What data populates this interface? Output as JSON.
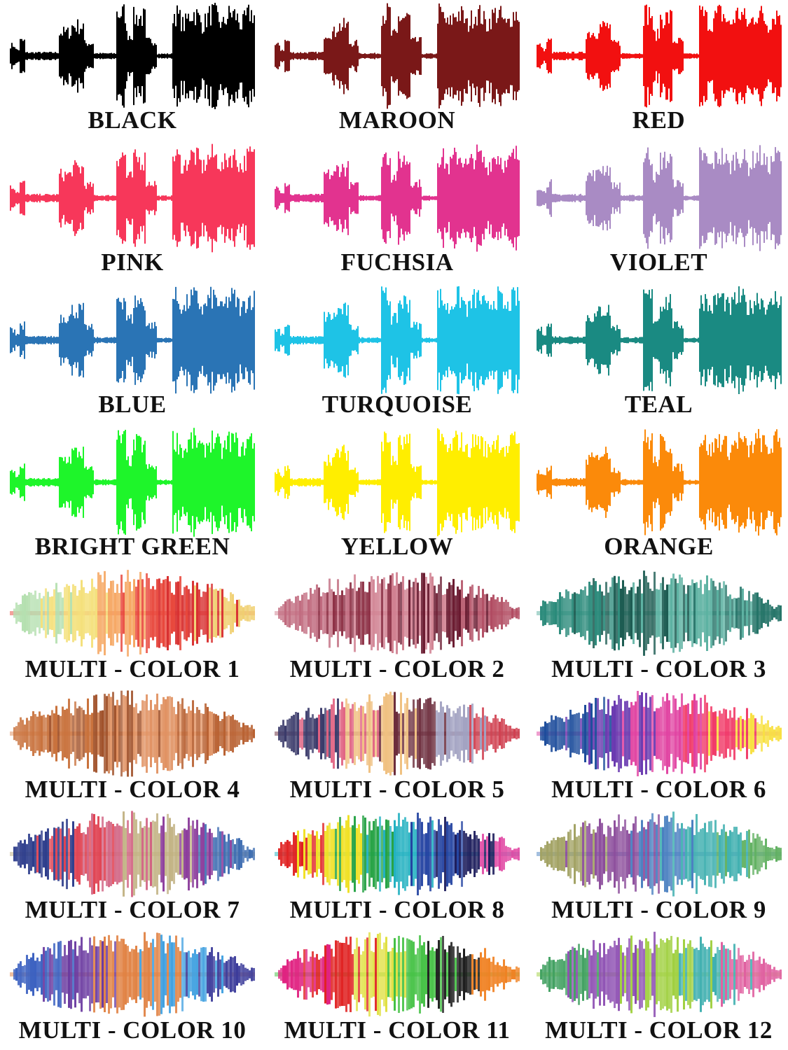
{
  "solid_swatches": [
    {
      "label": "BLACK",
      "color": "#000000"
    },
    {
      "label": "MAROON",
      "color": "#7a1818"
    },
    {
      "label": "RED",
      "color": "#f21010"
    },
    {
      "label": "PINK",
      "color": "#f7375a"
    },
    {
      "label": "FUCHSIA",
      "color": "#e2338f"
    },
    {
      "label": "VIOLET",
      "color": "#a98bc4"
    },
    {
      "label": "BLUE",
      "color": "#2a74b5"
    },
    {
      "label": "TURQUOISE",
      "color": "#1ec3e6"
    },
    {
      "label": "TEAL",
      "color": "#1a8a82"
    },
    {
      "label": "BRIGHT GREEN",
      "color": "#1ef52a"
    },
    {
      "label": "YELLOW",
      "color": "#ffee00"
    },
    {
      "label": "ORANGE",
      "color": "#fb8a0a"
    }
  ],
  "multi_swatches": [
    {
      "label": "MULTI - COLOR 1",
      "palette": [
        "#b5e0b0",
        "#f4e07a",
        "#f5a25a",
        "#e8463a",
        "#d83030",
        "#f0d070"
      ]
    },
    {
      "label": "MULTI - COLOR 2",
      "palette": [
        "#c06a7e",
        "#8a2a40",
        "#d08090",
        "#6a1a30",
        "#b04a60"
      ]
    },
    {
      "label": "MULTI - COLOR 3",
      "palette": [
        "#2a8a7a",
        "#1a5a50",
        "#5ab0a0",
        "#227266"
      ]
    },
    {
      "label": "MULTI - COLOR 4",
      "palette": [
        "#c8703a",
        "#a05028",
        "#e09060",
        "#b86030"
      ]
    },
    {
      "label": "MULTI - COLOR 5",
      "palette": [
        "#3a3a6a",
        "#e06080",
        "#f0c080",
        "#6a2a3a",
        "#a0a0c0",
        "#d04050"
      ]
    },
    {
      "label": "MULTI - COLOR 6",
      "palette": [
        "#1a4a9a",
        "#6a3ab0",
        "#e040a0",
        "#f03060",
        "#f8e040"
      ]
    },
    {
      "label": "MULTI - COLOR 7",
      "palette": [
        "#2a3a8a",
        "#e04050",
        "#d06080",
        "#c0b080",
        "#8a3a9a",
        "#3a6ab0"
      ]
    },
    {
      "label": "MULTI - COLOR 8",
      "palette": [
        "#e02020",
        "#f0e020",
        "#20a040",
        "#20b0c0",
        "#2040a0",
        "#1a1a5a",
        "#e040a0"
      ]
    },
    {
      "label": "MULTI - COLOR 9",
      "palette": [
        "#a0a060",
        "#8a4a9a",
        "#4a80c0",
        "#40b0b0",
        "#60b060"
      ]
    },
    {
      "label": "MULTI - COLOR 10",
      "palette": [
        "#3a60c0",
        "#6a3aa0",
        "#e08040",
        "#40a0e0",
        "#3a3a9a"
      ]
    },
    {
      "label": "MULTI - COLOR 11",
      "palette": [
        "#e02080",
        "#e02020",
        "#e0e040",
        "#40c040",
        "#1a1a1a",
        "#f08020"
      ]
    },
    {
      "label": "MULTI - COLOR 12",
      "palette": [
        "#40a060",
        "#8a4ab0",
        "#a0d040",
        "#40b0b0",
        "#e060a0"
      ]
    }
  ]
}
